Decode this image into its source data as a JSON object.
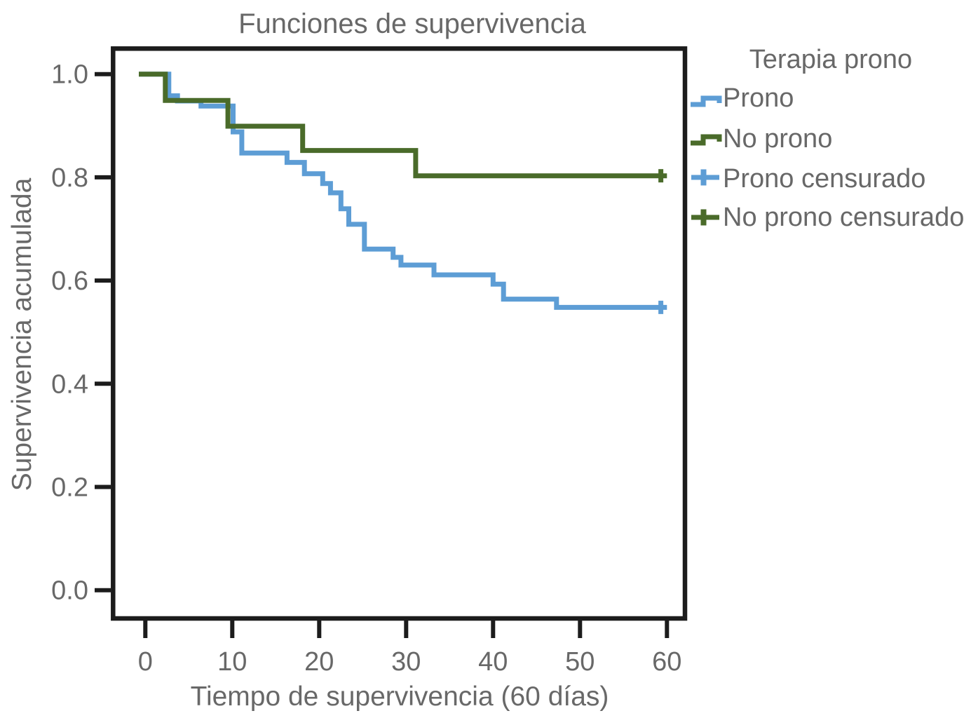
{
  "title": "Funciones de supervivencia",
  "colors": {
    "prono_blue": "#5d9dd5",
    "no_prono_green": "#4a6b2a",
    "text_gray": "#686868",
    "axis_black": "#1c1c1c"
  },
  "chart_data": {
    "type": "line",
    "subtype": "kaplan-meier-step",
    "title": "Funciones de supervivencia",
    "xlabel": "Tiempo de supervivencia (60 días)",
    "ylabel": "Supervivencia acumulada",
    "legend_title": "Terapia prono",
    "legend_position": "right",
    "grid": false,
    "xlim": [
      0,
      60
    ],
    "ylim": [
      0.0,
      1.0
    ],
    "x_ticks": [
      0,
      10,
      20,
      30,
      40,
      50,
      60
    ],
    "y_ticks": [
      {
        "v": 1.0,
        "label": "1.0"
      },
      {
        "v": 0.8,
        "label": "0.8"
      },
      {
        "v": 0.6,
        "label": "0.6"
      },
      {
        "v": 0.4,
        "label": "0.4"
      },
      {
        "v": 0.2,
        "label": "0.2"
      },
      {
        "v": 0.0,
        "label": "0.0"
      }
    ],
    "series": [
      {
        "name": "Prono",
        "color": "#5d9dd5",
        "points": [
          [
            0,
            1.0
          ],
          [
            2.7,
            0.958
          ],
          [
            3.7,
            0.948
          ],
          [
            6.4,
            0.938
          ],
          [
            10.1,
            0.888
          ],
          [
            11.1,
            0.847
          ],
          [
            16.3,
            0.829
          ],
          [
            18.3,
            0.807
          ],
          [
            20.4,
            0.788
          ],
          [
            21.3,
            0.77
          ],
          [
            22.5,
            0.739
          ],
          [
            23.4,
            0.709
          ],
          [
            25.2,
            0.661
          ],
          [
            28.5,
            0.645
          ],
          [
            29.4,
            0.63
          ],
          [
            33.2,
            0.611
          ],
          [
            40.0,
            0.593
          ],
          [
            41.2,
            0.564
          ],
          [
            47.3,
            0.548
          ],
          [
            60,
            0.548
          ]
        ],
        "censored": [
          [
            59.3,
            0.548
          ]
        ]
      },
      {
        "name": "No prono",
        "color": "#4a6b2a",
        "points": [
          [
            0,
            1.0
          ],
          [
            2.3,
            0.949
          ],
          [
            9.5,
            0.899
          ],
          [
            18.1,
            0.852
          ],
          [
            31.1,
            0.803
          ],
          [
            60,
            0.803
          ]
        ],
        "censored": [
          [
            59.3,
            0.803
          ]
        ]
      }
    ],
    "legend_entries": [
      {
        "label": "Prono",
        "color": "#5d9dd5",
        "symbol": "step"
      },
      {
        "label": "No prono",
        "color": "#4a6b2a",
        "symbol": "step"
      },
      {
        "label": "Prono censurado",
        "color": "#5d9dd5",
        "symbol": "censor"
      },
      {
        "label": "No prono censurado",
        "color": "#4a6b2a",
        "symbol": "censor"
      }
    ]
  }
}
